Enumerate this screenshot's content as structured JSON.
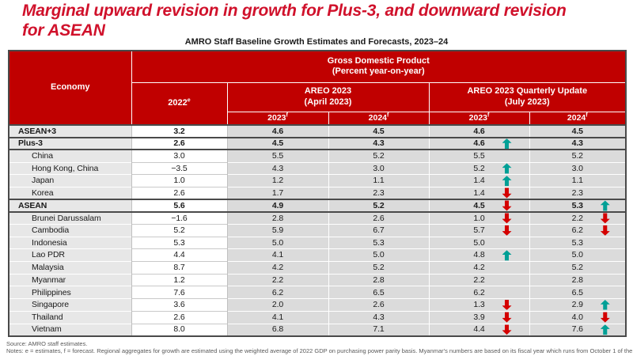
{
  "page": {
    "title": "Marginal upward revision in growth for Plus-3, and downward revision for ASEAN",
    "subtitle": "AMRO Staff Baseline Growth Estimates and Forecasts, 2023–24"
  },
  "colors": {
    "title_red": "#D0112B",
    "header_red": "#C00000",
    "arrow_up": "#00A096",
    "arrow_down": "#D40000"
  },
  "table": {
    "header": {
      "economy": "Economy",
      "gdp_title": "Gross Domestic Product",
      "gdp_subtitle": "(Percent year-on-year)",
      "col_2022": {
        "label": "2022",
        "sup": "e"
      },
      "areo_april": {
        "label": "AREO 2023",
        "sub": "(April 2023)"
      },
      "areo_july": {
        "label": "AREO 2023 Quarterly Update",
        "sub": "(July 2023)"
      },
      "sub_cols": [
        {
          "label": "2023",
          "sup": "f"
        },
        {
          "label": "2024",
          "sup": "f"
        },
        {
          "label": "2023",
          "sup": "f"
        },
        {
          "label": "2024",
          "sup": "f"
        }
      ]
    },
    "rows": [
      {
        "name": "ASEAN+3",
        "level": "aggregate",
        "y2022": "3.2",
        "apr2023": "4.6",
        "apr2024": "4.5",
        "jul2023": "4.6",
        "jul2023_arrow": "",
        "jul2024": "4.5",
        "jul2024_arrow": ""
      },
      {
        "name": "Plus-3",
        "level": "aggregate",
        "y2022": "2.6",
        "apr2023": "4.5",
        "apr2024": "4.3",
        "jul2023": "4.6",
        "jul2023_arrow": "up",
        "jul2024": "4.3",
        "jul2024_arrow": ""
      },
      {
        "name": "China",
        "level": "country",
        "y2022": "3.0",
        "apr2023": "5.5",
        "apr2024": "5.2",
        "jul2023": "5.5",
        "jul2023_arrow": "",
        "jul2024": "5.2",
        "jul2024_arrow": ""
      },
      {
        "name": "Hong Kong, China",
        "level": "country",
        "y2022": "−3.5",
        "apr2023": "4.3",
        "apr2024": "3.0",
        "jul2023": "5.2",
        "jul2023_arrow": "up",
        "jul2024": "3.0",
        "jul2024_arrow": ""
      },
      {
        "name": "Japan",
        "level": "country",
        "y2022": "1.0",
        "apr2023": "1.2",
        "apr2024": "1.1",
        "jul2023": "1.4",
        "jul2023_arrow": "up",
        "jul2024": "1.1",
        "jul2024_arrow": ""
      },
      {
        "name": "Korea",
        "level": "country",
        "y2022": "2.6",
        "apr2023": "1.7",
        "apr2024": "2.3",
        "jul2023": "1.4",
        "jul2023_arrow": "down",
        "jul2024": "2.3",
        "jul2024_arrow": ""
      },
      {
        "name": "ASEAN",
        "level": "aggregate",
        "y2022": "5.6",
        "apr2023": "4.9",
        "apr2024": "5.2",
        "jul2023": "4.5",
        "jul2023_arrow": "down",
        "jul2024": "5.3",
        "jul2024_arrow": "up"
      },
      {
        "name": "Brunei Darussalam",
        "level": "country",
        "y2022": "−1.6",
        "apr2023": "2.8",
        "apr2024": "2.6",
        "jul2023": "1.0",
        "jul2023_arrow": "down",
        "jul2024": "2.2",
        "jul2024_arrow": "down"
      },
      {
        "name": "Cambodia",
        "level": "country",
        "y2022": "5.2",
        "apr2023": "5.9",
        "apr2024": "6.7",
        "jul2023": "5.7",
        "jul2023_arrow": "down",
        "jul2024": "6.2",
        "jul2024_arrow": "down"
      },
      {
        "name": "Indonesia",
        "level": "country",
        "y2022": "5.3",
        "apr2023": "5.0",
        "apr2024": "5.3",
        "jul2023": "5.0",
        "jul2023_arrow": "",
        "jul2024": "5.3",
        "jul2024_arrow": ""
      },
      {
        "name": "Lao PDR",
        "level": "country",
        "y2022": "4.4",
        "apr2023": "4.1",
        "apr2024": "5.0",
        "jul2023": "4.8",
        "jul2023_arrow": "up",
        "jul2024": "5.0",
        "jul2024_arrow": ""
      },
      {
        "name": "Malaysia",
        "level": "country",
        "y2022": "8.7",
        "apr2023": "4.2",
        "apr2024": "5.2",
        "jul2023": "4.2",
        "jul2023_arrow": "",
        "jul2024": "5.2",
        "jul2024_arrow": ""
      },
      {
        "name": "Myanmar",
        "level": "country",
        "y2022": "1.2",
        "apr2023": "2.2",
        "apr2024": "2.8",
        "jul2023": "2.2",
        "jul2023_arrow": "",
        "jul2024": "2.8",
        "jul2024_arrow": ""
      },
      {
        "name": "Philippines",
        "level": "country",
        "y2022": "7.6",
        "apr2023": "6.2",
        "apr2024": "6.5",
        "jul2023": "6.2",
        "jul2023_arrow": "",
        "jul2024": "6.5",
        "jul2024_arrow": ""
      },
      {
        "name": "Singapore",
        "level": "country",
        "y2022": "3.6",
        "apr2023": "2.0",
        "apr2024": "2.6",
        "jul2023": "1.3",
        "jul2023_arrow": "down",
        "jul2024": "2.9",
        "jul2024_arrow": "up"
      },
      {
        "name": "Thailand",
        "level": "country",
        "y2022": "2.6",
        "apr2023": "4.1",
        "apr2024": "4.3",
        "jul2023": "3.9",
        "jul2023_arrow": "down",
        "jul2024": "4.0",
        "jul2024_arrow": "down"
      },
      {
        "name": "Vietnam",
        "level": "country",
        "y2022": "8.0",
        "apr2023": "6.8",
        "apr2024": "7.1",
        "jul2023": "4.4",
        "jul2023_arrow": "down",
        "jul2024": "7.6",
        "jul2024_arrow": "up"
      }
    ]
  },
  "footer": {
    "source": "Source: AMRO staff estimates.",
    "notes": "Notes: e = estimates, f = forecast. Regional aggregates for growth are estimated using the weighted average of 2022 GDP on purchasing power parity basis. Myanmar's numbers are based on its fiscal year which runs from October 1 of the"
  }
}
